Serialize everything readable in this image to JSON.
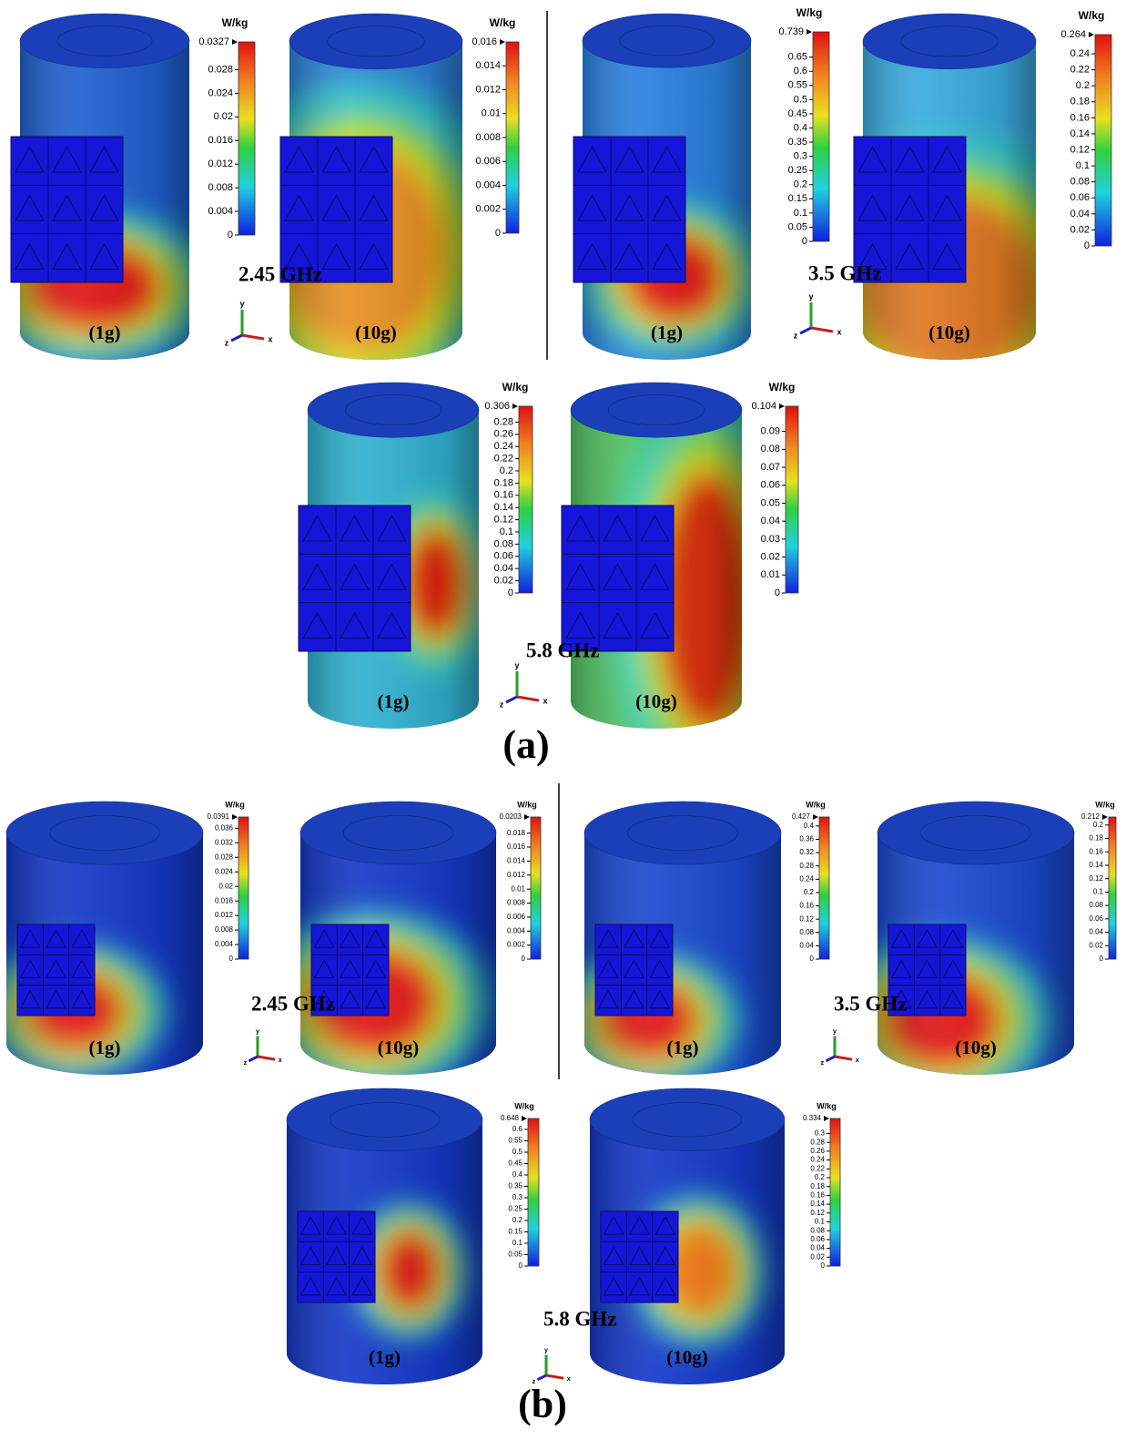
{
  "axes": [
    "x",
    "y",
    "z"
  ],
  "panels": [
    {
      "label": "(a)",
      "groups": [
        {
          "frequency": "2.45 GHz",
          "maps": [
            {
              "mass": "(1g)",
              "unit": "W/kg",
              "max": 0.0327,
              "ticks": [
                0.028,
                0.024,
                0.02,
                0.016,
                0.012,
                0.008,
                0.004,
                0
              ]
            },
            {
              "mass": "(10g)",
              "unit": "W/kg",
              "max": 0.016,
              "ticks": [
                0.014,
                0.012,
                0.01,
                0.008,
                0.006,
                0.004,
                0.002,
                0
              ]
            }
          ]
        },
        {
          "frequency": "3.5 GHz",
          "maps": [
            {
              "mass": "(1g)",
              "unit": "W/kg",
              "max": 0.739,
              "ticks": [
                0.65,
                0.6,
                0.55,
                0.5,
                0.45,
                0.4,
                0.35,
                0.3,
                0.25,
                0.2,
                0.15,
                0.1,
                0.05,
                0
              ]
            },
            {
              "mass": "(10g)",
              "unit": "W/kg",
              "max": 0.264,
              "ticks": [
                0.24,
                0.22,
                0.2,
                0.18,
                0.16,
                0.14,
                0.12,
                0.1,
                0.08,
                0.06,
                0.04,
                0.02,
                0
              ]
            }
          ]
        },
        {
          "frequency": "5.8 GHz",
          "maps": [
            {
              "mass": "(1g)",
              "unit": "W/kg",
              "max": 0.306,
              "ticks": [
                0.28,
                0.26,
                0.24,
                0.22,
                0.2,
                0.18,
                0.16,
                0.14,
                0.12,
                0.1,
                0.08,
                0.06,
                0.04,
                0.02,
                0
              ]
            },
            {
              "mass": "(10g)",
              "unit": "W/kg",
              "max": 0.104,
              "ticks": [
                0.09,
                0.08,
                0.07,
                0.06,
                0.05,
                0.04,
                0.03,
                0.02,
                0.01,
                0
              ]
            }
          ]
        }
      ]
    },
    {
      "label": "(b)",
      "groups": [
        {
          "frequency": "2.45 GHz",
          "maps": [
            {
              "mass": "(1g)",
              "unit": "W/kg",
              "max": 0.0391,
              "ticks": [
                0.036,
                0.032,
                0.028,
                0.024,
                0.02,
                0.016,
                0.012,
                0.008,
                0.004,
                0
              ]
            },
            {
              "mass": "(10g)",
              "unit": "W/kg",
              "max": 0.0203,
              "ticks": [
                0.018,
                0.016,
                0.014,
                0.012,
                0.01,
                0.008,
                0.006,
                0.004,
                0.002,
                0
              ]
            }
          ]
        },
        {
          "frequency": "3.5 GHz",
          "maps": [
            {
              "mass": "(1g)",
              "unit": "W/kg",
              "max": 0.427,
              "ticks": [
                0.4,
                0.36,
                0.32,
                0.28,
                0.24,
                0.2,
                0.16,
                0.12,
                0.08,
                0.04,
                0
              ]
            },
            {
              "mass": "(10g)",
              "unit": "W/kg",
              "max": 0.212,
              "ticks": [
                0.2,
                0.18,
                0.16,
                0.14,
                0.12,
                0.1,
                0.08,
                0.06,
                0.04,
                0.02,
                0
              ]
            }
          ]
        },
        {
          "frequency": "5.8 GHz",
          "maps": [
            {
              "mass": "(1g)",
              "unit": "W/kg",
              "max": 0.648,
              "ticks": [
                0.6,
                0.55,
                0.5,
                0.45,
                0.4,
                0.35,
                0.3,
                0.25,
                0.2,
                0.15,
                0.1,
                0.05,
                0
              ]
            },
            {
              "mass": "(10g)",
              "unit": "W/kg",
              "max": 0.334,
              "ticks": [
                0.3,
                0.28,
                0.26,
                0.24,
                0.22,
                0.2,
                0.18,
                0.16,
                0.14,
                0.12,
                0.1,
                0.08,
                0.06,
                0.04,
                0.02,
                0
              ]
            }
          ]
        }
      ]
    }
  ]
}
